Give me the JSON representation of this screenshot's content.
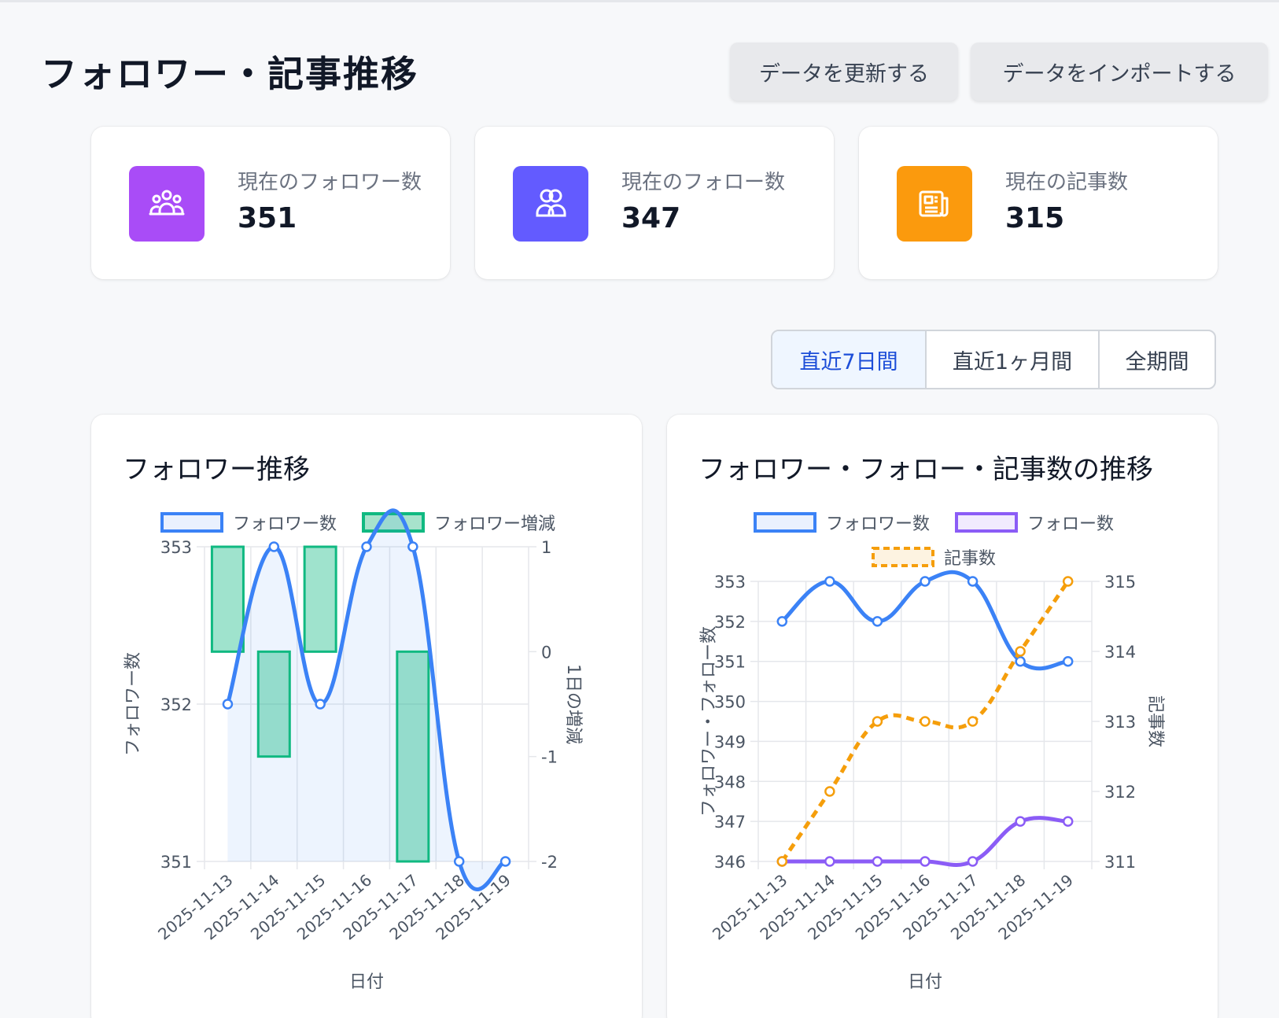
{
  "header": {
    "title": "フォロワー・記事推移",
    "refresh_label": "データを更新する",
    "import_label": "データをインポートする"
  },
  "stats": [
    {
      "label": "現在のフォロワー数",
      "value": "351",
      "icon": "followers-icon",
      "color": "#a94cf7"
    },
    {
      "label": "現在のフォロー数",
      "value": "347",
      "icon": "following-icon",
      "color": "#635bff"
    },
    {
      "label": "現在の記事数",
      "value": "315",
      "icon": "article-icon",
      "color": "#fb9a0d"
    }
  ],
  "periods": {
    "selected": "直近7日間",
    "items": [
      "直近7日間",
      "直近1ヶ月間",
      "全期間"
    ]
  },
  "colors": {
    "followers": "#3b82f6",
    "follow": "#8b5cf6",
    "articles": "#f59e0b",
    "delta": "#10b981"
  },
  "chart_data": [
    {
      "type": "line+bar",
      "title": "フォロワー推移",
      "categories": [
        "2025-11-13",
        "2025-11-14",
        "2025-11-15",
        "2025-11-16",
        "2025-11-17",
        "2025-11-18",
        "2025-11-19"
      ],
      "xlabel": "日付",
      "ylabel_left": "フォロワー数",
      "ylabel_right": "1日の増減",
      "y_left_ticks": [
        "353",
        "352",
        "351"
      ],
      "y_right_ticks": [
        "1",
        "0",
        "-1",
        "-2"
      ],
      "ylim_left": [
        351,
        353
      ],
      "ylim_right": [
        -2,
        1
      ],
      "legend_position": "top",
      "series": [
        {
          "name": "フォロワー数",
          "kind": "line",
          "axis": "left",
          "values": [
            352,
            353,
            352,
            353,
            353,
            351,
            351
          ]
        },
        {
          "name": "フォロワー増減",
          "kind": "bar",
          "axis": "right",
          "values": [
            1,
            -1,
            1,
            null,
            -2,
            null,
            null
          ]
        }
      ]
    },
    {
      "type": "line",
      "title": "フォロワー・フォロー・記事数の推移",
      "categories": [
        "2025-11-13",
        "2025-11-14",
        "2025-11-15",
        "2025-11-16",
        "2025-11-17",
        "2025-11-18",
        "2025-11-19"
      ],
      "xlabel": "日付",
      "ylabel_left": "フォロワー・フォロー数",
      "ylabel_right": "記事数",
      "y_left_ticks": [
        "353",
        "352",
        "351",
        "350",
        "349",
        "348",
        "347",
        "346"
      ],
      "y_right_ticks": [
        "315",
        "314",
        "313",
        "312",
        "311"
      ],
      "ylim_left": [
        346,
        353
      ],
      "ylim_right": [
        311,
        315
      ],
      "legend_position": "top",
      "series": [
        {
          "name": "フォロワー数",
          "axis": "left",
          "values": [
            352,
            353,
            352,
            353,
            353,
            351,
            351
          ]
        },
        {
          "name": "フォロー数",
          "axis": "left",
          "values": [
            346,
            346,
            346,
            346,
            346,
            347,
            347
          ]
        },
        {
          "name": "記事数",
          "axis": "right",
          "dashed": true,
          "values": [
            311,
            312,
            313,
            313,
            313,
            314,
            315
          ]
        }
      ]
    }
  ]
}
